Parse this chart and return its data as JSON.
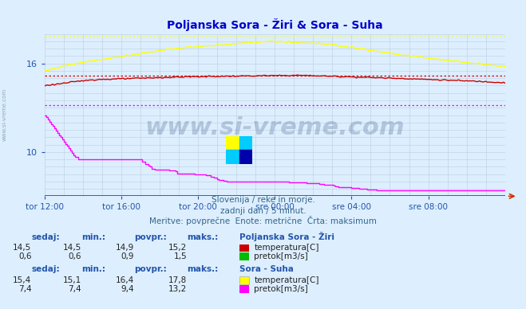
{
  "title": "Poljanska Sora - Žiri & Sora - Suha",
  "bg_color": "#ddeeff",
  "plot_bg_color": "#ddeeff",
  "grid_color": "#bbccdd",
  "x_labels": [
    "tor 12:00",
    "tor 16:00",
    "tor 20:00",
    "sre 00:00",
    "sre 04:00",
    "sre 08:00"
  ],
  "x_ticks_pos": [
    0,
    48,
    96,
    144,
    192,
    240
  ],
  "x_max": 288,
  "y_min": 7,
  "y_max": 18,
  "y_ticks": [
    10,
    16
  ],
  "subtitle1": "Slovenija / reke in morje.",
  "subtitle2": "zadnji dan / 5 minut.",
  "subtitle3": "Meritve: povprečne  Enote: metrične  Črta: maksimum",
  "station1_name": "Poljanska Sora - Žiri",
  "station1_temp_color": "#cc0000",
  "station1_flow_color": "#00bb00",
  "station2_name": "Sora - Suha",
  "station2_temp_color": "#ffff00",
  "station2_flow_color": "#ff00ff",
  "station1_sedaj": "14,5",
  "station1_min": "14,5",
  "station1_povpr": "14,9",
  "station1_maks": "15,2",
  "station1_flow_sedaj": "0,6",
  "station1_flow_min": "0,6",
  "station1_flow_povpr": "0,9",
  "station1_flow_maks": "1,5",
  "station2_sedaj": "15,4",
  "station2_min": "15,1",
  "station2_povpr": "16,4",
  "station2_maks": "17,8",
  "station2_flow_sedaj": "7,4",
  "station2_flow_min": "7,4",
  "station2_flow_povpr": "9,4",
  "station2_flow_maks": "13,2",
  "watermark": "www.si-vreme.com",
  "title_color": "#0000cc",
  "label_color": "#2255aa",
  "text_color": "#336688",
  "temp1_max": 15.2,
  "temp2_max": 17.8,
  "flow1_max": 1.5,
  "flow2_max": 13.2
}
